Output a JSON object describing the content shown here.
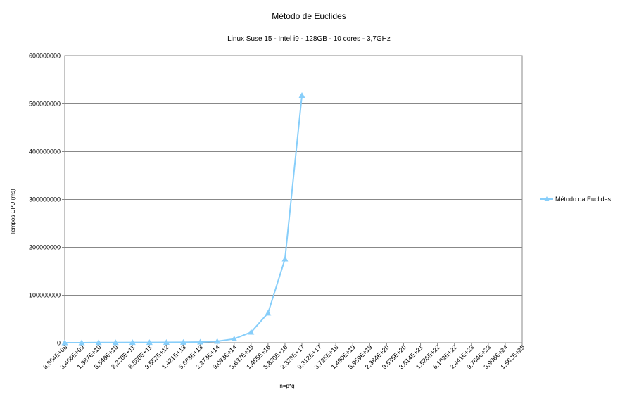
{
  "chart_data": {
    "type": "line",
    "title": "Método de Euclides",
    "subtitle": "Linux Suse 15 -  Intel i9 -  128GB - 10 cores  - 3,7GHz",
    "xlabel": "n=p*q",
    "ylabel": "Tempos CPU (ms)",
    "ylim": [
      0,
      600000000
    ],
    "y_ticks": [
      "0",
      "100000000",
      "200000000",
      "300000000",
      "400000000",
      "500000000",
      "600000000"
    ],
    "grid": true,
    "legend_position": "right",
    "categories": [
      "8,864E+08",
      "3,466E+09",
      "1,387E+10",
      "5,548E+10",
      "2,220E+11",
      "8,880E+11",
      "3,552E+12",
      "1,421E+13",
      "5,683E+13",
      "2,273E+14",
      "9,093E+14",
      "3,637E+15",
      "1,455E+16",
      "5,820E+16",
      "2,328E+17",
      "9,312E+17",
      "3,725E+18",
      "1,490E+19",
      "5,959E+19",
      "2,384E+20",
      "9,535E+20",
      "3,814E+21",
      "1,526E+22",
      "6,102E+22",
      "2,441E+23",
      "9,764E+23",
      "3,906E+24",
      "1,562E+25"
    ],
    "series": [
      {
        "name": "Método da Euclides",
        "color": "#87cefa",
        "marker": "triangle",
        "values": [
          20000,
          80000,
          300000,
          400000,
          500000,
          600000,
          700000,
          1000000,
          1500000,
          3000000,
          8000000,
          22000000,
          62000000,
          175000000,
          517000000,
          null,
          null,
          null,
          null,
          null,
          null,
          null,
          null,
          null,
          null,
          null,
          null,
          null
        ]
      }
    ]
  }
}
